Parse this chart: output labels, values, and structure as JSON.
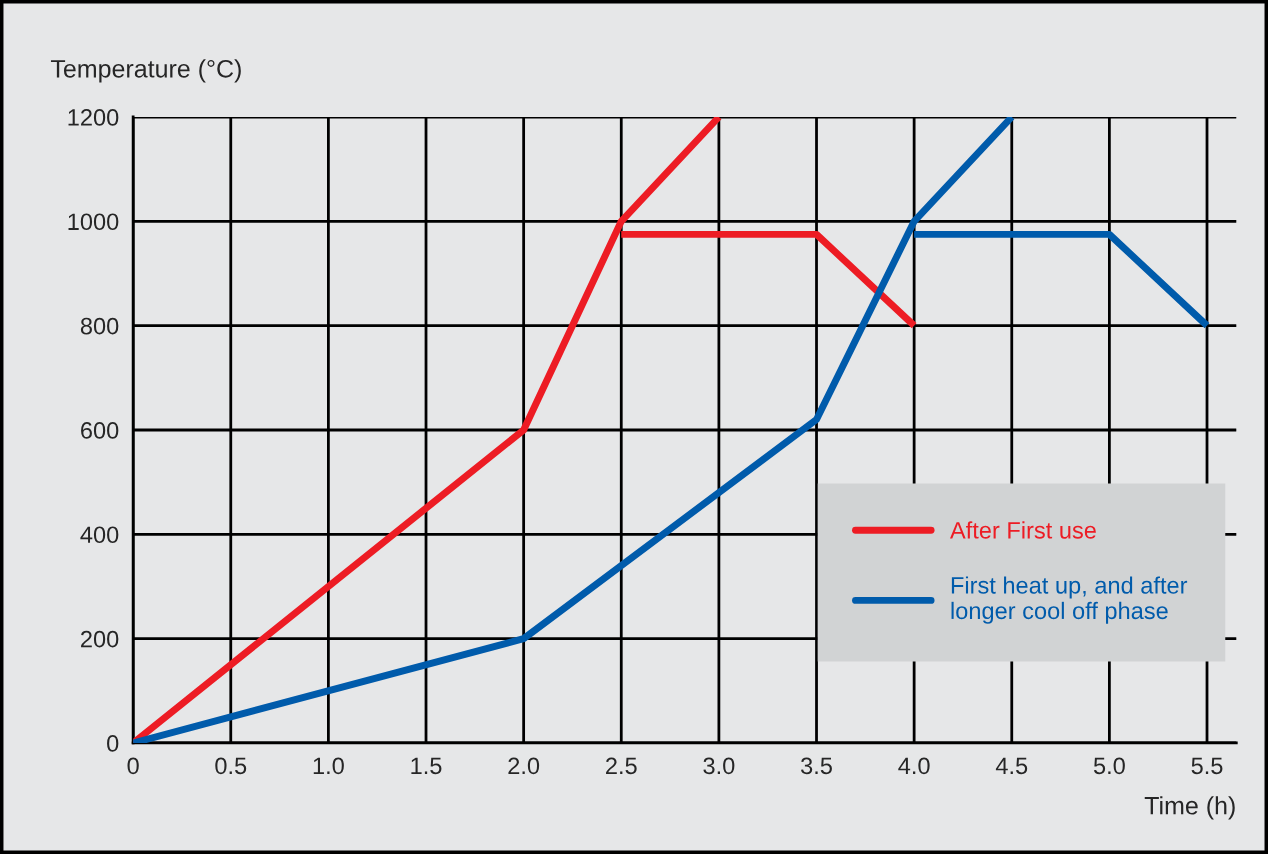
{
  "chart_data": {
    "type": "line",
    "ylabel": "Temperature (°C)",
    "xlabel": "Time (h)",
    "xlim": [
      0,
      5.65
    ],
    "ylim": [
      0,
      1200
    ],
    "xticks": [
      0,
      0.5,
      {
        "value": 1,
        "label": "1.0"
      },
      1.5,
      {
        "value": 2,
        "label": "2.0"
      },
      2.5,
      {
        "value": 3,
        "label": "3.0"
      },
      3.5,
      {
        "value": 4,
        "label": "4.0"
      },
      4.5,
      {
        "value": 5,
        "label": "5.0"
      },
      5.5
    ],
    "yticks": [
      0,
      200,
      400,
      600,
      800,
      1000,
      1200
    ],
    "grid": true,
    "legend": "lower right",
    "marker": "none",
    "line_style": "solid",
    "series": [
      {
        "name": "After First use",
        "color": "#ed1c24",
        "x": [
          0,
          2,
          2.5,
          3
        ],
        "values": [
          0,
          600,
          1000,
          1200
        ]
      },
      {
        "color": "#ed1c24",
        "x": [
          2.5,
          3.5,
          4
        ],
        "values": [
          975,
          975,
          800
        ]
      },
      {
        "name": "First heat up, and after\nlonger cool off phase",
        "color": "#005bab",
        "x": [
          0,
          2,
          3.5,
          4,
          4.5
        ],
        "values": [
          0,
          200,
          620,
          1000,
          1200
        ]
      },
      {
        "color": "#005bab",
        "x": [
          4,
          5,
          5.5
        ],
        "values": [
          975,
          975,
          800
        ]
      }
    ]
  }
}
